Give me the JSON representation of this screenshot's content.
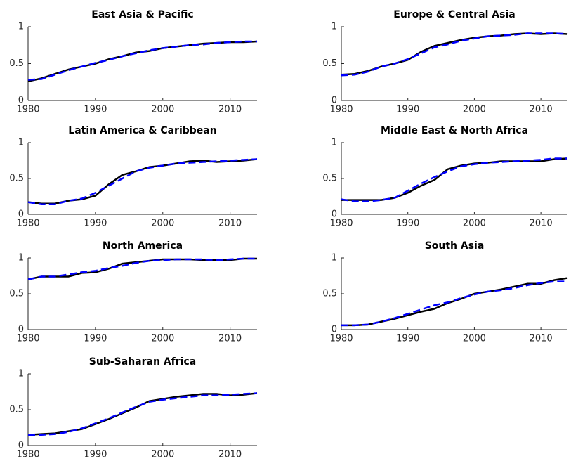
{
  "chart_data": [
    {
      "type": "line",
      "title": "East Asia & Pacific",
      "x": [
        1980,
        1982,
        1984,
        1986,
        1988,
        1990,
        1992,
        1994,
        1996,
        1998,
        2000,
        2002,
        2004,
        2006,
        2008,
        2010,
        2012,
        2014
      ],
      "xlim": [
        1980,
        2014
      ],
      "ylim": [
        0,
        1
      ],
      "xticks": [
        1980,
        1990,
        2000,
        2010
      ],
      "yticks": [
        0,
        0.5,
        1
      ],
      "series": [
        {
          "color": "#000000",
          "linestyle": "solid",
          "values": [
            0.26,
            0.3,
            0.36,
            0.42,
            0.46,
            0.5,
            0.56,
            0.6,
            0.65,
            0.67,
            0.71,
            0.73,
            0.75,
            0.77,
            0.78,
            0.79,
            0.79,
            0.8
          ]
        },
        {
          "color": "#0000ff",
          "linestyle": "dashed",
          "values": [
            0.28,
            0.29,
            0.35,
            0.41,
            0.46,
            0.51,
            0.55,
            0.6,
            0.64,
            0.68,
            0.71,
            0.73,
            0.75,
            0.76,
            0.78,
            0.79,
            0.8,
            0.8
          ]
        }
      ]
    },
    {
      "type": "line",
      "title": "Europe & Central Asia",
      "x": [
        1980,
        1982,
        1984,
        1986,
        1988,
        1990,
        1992,
        1994,
        1996,
        1998,
        2000,
        2002,
        2004,
        2006,
        2008,
        2010,
        2012,
        2014
      ],
      "xlim": [
        1980,
        2014
      ],
      "ylim": [
        0,
        1
      ],
      "xticks": [
        1980,
        1990,
        2000,
        2010
      ],
      "yticks": [
        0,
        0.5,
        1
      ],
      "series": [
        {
          "color": "#000000",
          "linestyle": "solid",
          "values": [
            0.35,
            0.36,
            0.4,
            0.46,
            0.5,
            0.55,
            0.66,
            0.74,
            0.78,
            0.82,
            0.85,
            0.87,
            0.88,
            0.9,
            0.91,
            0.9,
            0.91,
            0.9
          ]
        },
        {
          "color": "#0000ff",
          "linestyle": "dashed",
          "values": [
            0.34,
            0.35,
            0.39,
            0.46,
            0.5,
            0.56,
            0.64,
            0.72,
            0.76,
            0.81,
            0.84,
            0.87,
            0.88,
            0.89,
            0.91,
            0.91,
            0.91,
            0.9
          ]
        }
      ]
    },
    {
      "type": "line",
      "title": "Latin America & Caribbean",
      "x": [
        1980,
        1982,
        1984,
        1986,
        1988,
        1990,
        1992,
        1994,
        1996,
        1998,
        2000,
        2002,
        2004,
        2006,
        2008,
        2010,
        2012,
        2014
      ],
      "xlim": [
        1980,
        2014
      ],
      "ylim": [
        0,
        1
      ],
      "xticks": [
        1980,
        1990,
        2000,
        2010
      ],
      "yticks": [
        0,
        0.5,
        1
      ],
      "series": [
        {
          "color": "#000000",
          "linestyle": "solid",
          "values": [
            0.17,
            0.15,
            0.15,
            0.19,
            0.21,
            0.26,
            0.42,
            0.55,
            0.6,
            0.66,
            0.68,
            0.71,
            0.74,
            0.75,
            0.73,
            0.74,
            0.75,
            0.77
          ]
        },
        {
          "color": "#0000ff",
          "linestyle": "dashed",
          "values": [
            0.17,
            0.14,
            0.14,
            0.19,
            0.22,
            0.3,
            0.4,
            0.5,
            0.6,
            0.65,
            0.68,
            0.71,
            0.72,
            0.73,
            0.74,
            0.75,
            0.76,
            0.77
          ]
        }
      ]
    },
    {
      "type": "line",
      "title": "Middle East & North Africa",
      "x": [
        1980,
        1982,
        1984,
        1986,
        1988,
        1990,
        1992,
        1994,
        1996,
        1998,
        2000,
        2002,
        2004,
        2006,
        2008,
        2010,
        2012,
        2014
      ],
      "xlim": [
        1980,
        2014
      ],
      "ylim": [
        0,
        1
      ],
      "xticks": [
        1980,
        1990,
        2000,
        2010
      ],
      "yticks": [
        0,
        0.5,
        1
      ],
      "series": [
        {
          "color": "#000000",
          "linestyle": "solid",
          "values": [
            0.2,
            0.2,
            0.2,
            0.2,
            0.23,
            0.3,
            0.4,
            0.48,
            0.63,
            0.68,
            0.71,
            0.72,
            0.74,
            0.74,
            0.74,
            0.74,
            0.77,
            0.78
          ]
        },
        {
          "color": "#0000ff",
          "linestyle": "dashed",
          "values": [
            0.21,
            0.18,
            0.18,
            0.2,
            0.23,
            0.33,
            0.43,
            0.52,
            0.6,
            0.67,
            0.7,
            0.72,
            0.73,
            0.74,
            0.75,
            0.76,
            0.78,
            0.78
          ]
        }
      ]
    },
    {
      "type": "line",
      "title": "North America",
      "x": [
        1980,
        1982,
        1984,
        1986,
        1988,
        1990,
        1992,
        1994,
        1996,
        1998,
        2000,
        2002,
        2004,
        2006,
        2008,
        2010,
        2012,
        2014
      ],
      "xlim": [
        1980,
        2014
      ],
      "ylim": [
        0,
        1
      ],
      "xticks": [
        1980,
        1990,
        2000,
        2010
      ],
      "yticks": [
        0,
        0.5,
        1
      ],
      "series": [
        {
          "color": "#000000",
          "linestyle": "solid",
          "values": [
            0.7,
            0.74,
            0.74,
            0.74,
            0.79,
            0.8,
            0.85,
            0.92,
            0.94,
            0.96,
            0.98,
            0.98,
            0.98,
            0.97,
            0.97,
            0.97,
            0.99,
            0.99
          ]
        },
        {
          "color": "#0000ff",
          "linestyle": "dashed",
          "values": [
            0.7,
            0.74,
            0.74,
            0.77,
            0.8,
            0.82,
            0.86,
            0.89,
            0.93,
            0.96,
            0.97,
            0.98,
            0.98,
            0.98,
            0.97,
            0.98,
            0.99,
            0.99
          ]
        }
      ]
    },
    {
      "type": "line",
      "title": "South Asia",
      "x": [
        1980,
        1982,
        1984,
        1986,
        1988,
        1990,
        1992,
        1994,
        1996,
        1998,
        2000,
        2002,
        2004,
        2006,
        2008,
        2010,
        2012,
        2014
      ],
      "xlim": [
        1980,
        2014
      ],
      "ylim": [
        0,
        1
      ],
      "xticks": [
        1980,
        1990,
        2000,
        2010
      ],
      "yticks": [
        0,
        0.5,
        1
      ],
      "series": [
        {
          "color": "#000000",
          "linestyle": "solid",
          "values": [
            0.06,
            0.06,
            0.07,
            0.11,
            0.15,
            0.2,
            0.25,
            0.29,
            0.37,
            0.43,
            0.5,
            0.53,
            0.56,
            0.6,
            0.64,
            0.64,
            0.69,
            0.72
          ]
        },
        {
          "color": "#0000ff",
          "linestyle": "dashed",
          "values": [
            0.06,
            0.06,
            0.07,
            0.11,
            0.16,
            0.22,
            0.28,
            0.34,
            0.38,
            0.44,
            0.49,
            0.53,
            0.55,
            0.58,
            0.62,
            0.65,
            0.67,
            0.67
          ]
        }
      ]
    },
    {
      "type": "line",
      "title": "Sub-Saharan Africa",
      "x": [
        1980,
        1982,
        1984,
        1986,
        1988,
        1990,
        1992,
        1994,
        1996,
        1998,
        2000,
        2002,
        2004,
        2006,
        2008,
        2010,
        2012,
        2014
      ],
      "xlim": [
        1980,
        2014
      ],
      "ylim": [
        0,
        1
      ],
      "xticks": [
        1980,
        1990,
        2000,
        2010
      ],
      "yticks": [
        0,
        0.5,
        1
      ],
      "series": [
        {
          "color": "#000000",
          "linestyle": "solid",
          "values": [
            0.15,
            0.16,
            0.17,
            0.2,
            0.23,
            0.3,
            0.37,
            0.45,
            0.53,
            0.62,
            0.65,
            0.68,
            0.7,
            0.72,
            0.72,
            0.7,
            0.71,
            0.73
          ]
        },
        {
          "color": "#0000ff",
          "linestyle": "dashed",
          "values": [
            0.15,
            0.15,
            0.16,
            0.19,
            0.24,
            0.31,
            0.38,
            0.46,
            0.54,
            0.61,
            0.64,
            0.66,
            0.68,
            0.7,
            0.7,
            0.71,
            0.72,
            0.73
          ]
        }
      ]
    }
  ]
}
